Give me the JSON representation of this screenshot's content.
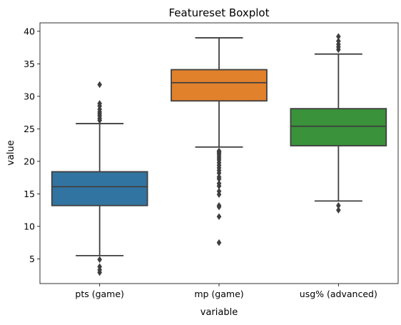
{
  "chart_data": {
    "type": "boxplot",
    "title": "Featureset Boxplot",
    "xlabel": "variable",
    "ylabel": "value",
    "ylim": [
      1.2,
      41.3
    ],
    "yticks": [
      5,
      10,
      15,
      20,
      25,
      30,
      35,
      40
    ],
    "grid": false,
    "categories": [
      "pts (game)",
      "mp (game)",
      "usg% (advanced)"
    ],
    "series": [
      {
        "whisker_low": 5.5,
        "q1": 13.2,
        "median": 16.1,
        "q3": 18.4,
        "whisker_high": 25.8,
        "outliers": [
          2.9,
          3.3,
          3.8,
          4.9,
          26.3,
          26.6,
          27.0,
          27.3,
          27.6,
          28.0,
          28.5,
          28.9,
          31.8
        ],
        "color": "#3274a1"
      },
      {
        "whisker_low": 22.2,
        "q1": 29.3,
        "median": 32.1,
        "q3": 34.1,
        "whisker_high": 39.0,
        "outliers": [
          7.5,
          11.5,
          13.0,
          13.2,
          14.9,
          15.4,
          16.2,
          16.6,
          17.3,
          17.6,
          18.2,
          18.6,
          19.0,
          19.4,
          19.8,
          20.2,
          20.5,
          20.8,
          21.1,
          21.3,
          21.5,
          21.6
        ],
        "color": "#e1812c"
      },
      {
        "whisker_low": 13.9,
        "q1": 22.4,
        "median": 25.4,
        "q3": 28.1,
        "whisker_high": 36.5,
        "outliers": [
          12.5,
          13.2,
          37.2,
          37.6,
          38.0,
          38.5,
          39.2
        ],
        "color": "#3a923a"
      }
    ]
  }
}
